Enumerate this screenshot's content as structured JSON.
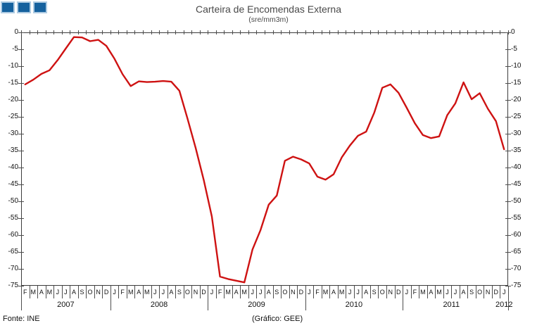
{
  "header": {
    "title": "Carteira de Encomendas Externa",
    "subtitle": "(sre/mm3m)",
    "logo_squares": 3
  },
  "footer": {
    "source": "Fonte: INE",
    "credit": "(Gráfico: GEE)"
  },
  "colors": {
    "line": "#ce1212",
    "logo_fill": "#15619e",
    "logo_border": "#aecbe2",
    "axis": "#3c3c3c",
    "tick": "#4d4d4d"
  },
  "chart_data": {
    "type": "line",
    "title": "Carteira de Encomendas Externa",
    "subtitle": "(sre/mm3m)",
    "ylabel": "",
    "xlabel": "",
    "ylim": [
      -75,
      0
    ],
    "ytick_step": 5,
    "ytick_labels": [
      "0",
      "-5",
      "-10",
      "-15",
      "-20",
      "-25",
      "-30",
      "-35",
      "-40",
      "-45",
      "-50",
      "-55",
      "-60",
      "-65",
      "-70",
      "-75"
    ],
    "grid": false,
    "legend_position": "none",
    "x_groups": [
      {
        "year": "2007",
        "months": [
          "F",
          "M",
          "A",
          "M",
          "J",
          "J",
          "A",
          "S",
          "O",
          "N",
          "D"
        ]
      },
      {
        "year": "2008",
        "months": [
          "J",
          "F",
          "M",
          "A",
          "M",
          "J",
          "J",
          "A",
          "S",
          "O",
          "N",
          "D"
        ]
      },
      {
        "year": "2009",
        "months": [
          "J",
          "F",
          "M",
          "A",
          "M",
          "J",
          "J",
          "A",
          "S",
          "O",
          "N",
          "D"
        ]
      },
      {
        "year": "2010",
        "months": [
          "J",
          "F",
          "M",
          "A",
          "M",
          "J",
          "J",
          "A",
          "S",
          "O",
          "N",
          "D"
        ]
      },
      {
        "year": "2011",
        "months": [
          "J",
          "F",
          "M",
          "A",
          "M",
          "J",
          "J",
          "A",
          "S",
          "O",
          "N",
          "D"
        ]
      },
      {
        "year": "2012",
        "months": [
          "J"
        ]
      }
    ],
    "series": [
      {
        "name": "Carteira de Encomendas Externa",
        "color": "#ce1212",
        "values": [
          -15.4,
          -14.0,
          -12.3,
          -11.2,
          -8.2,
          -4.8,
          -1.4,
          -1.5,
          -2.6,
          -2.2,
          -4.0,
          -7.8,
          -12.4,
          -15.9,
          -14.5,
          -14.7,
          -14.6,
          -14.4,
          -14.6,
          -17.3,
          -25.5,
          -34.2,
          -43.7,
          -54.5,
          -72.3,
          -73.0,
          -73.5,
          -74.0,
          -64.3,
          -58.5,
          -51.0,
          -48.3,
          -38.0,
          -36.8,
          -37.6,
          -38.8,
          -42.7,
          -43.6,
          -42.0,
          -37.0,
          -33.5,
          -30.6,
          -29.4,
          -23.8,
          -16.4,
          -15.4,
          -17.9,
          -22.3,
          -26.9,
          -30.4,
          -31.3,
          -30.8,
          -24.5,
          -21.0,
          -14.8,
          -19.8,
          -18.0,
          -22.6,
          -26.3,
          -34.6
        ]
      }
    ]
  }
}
